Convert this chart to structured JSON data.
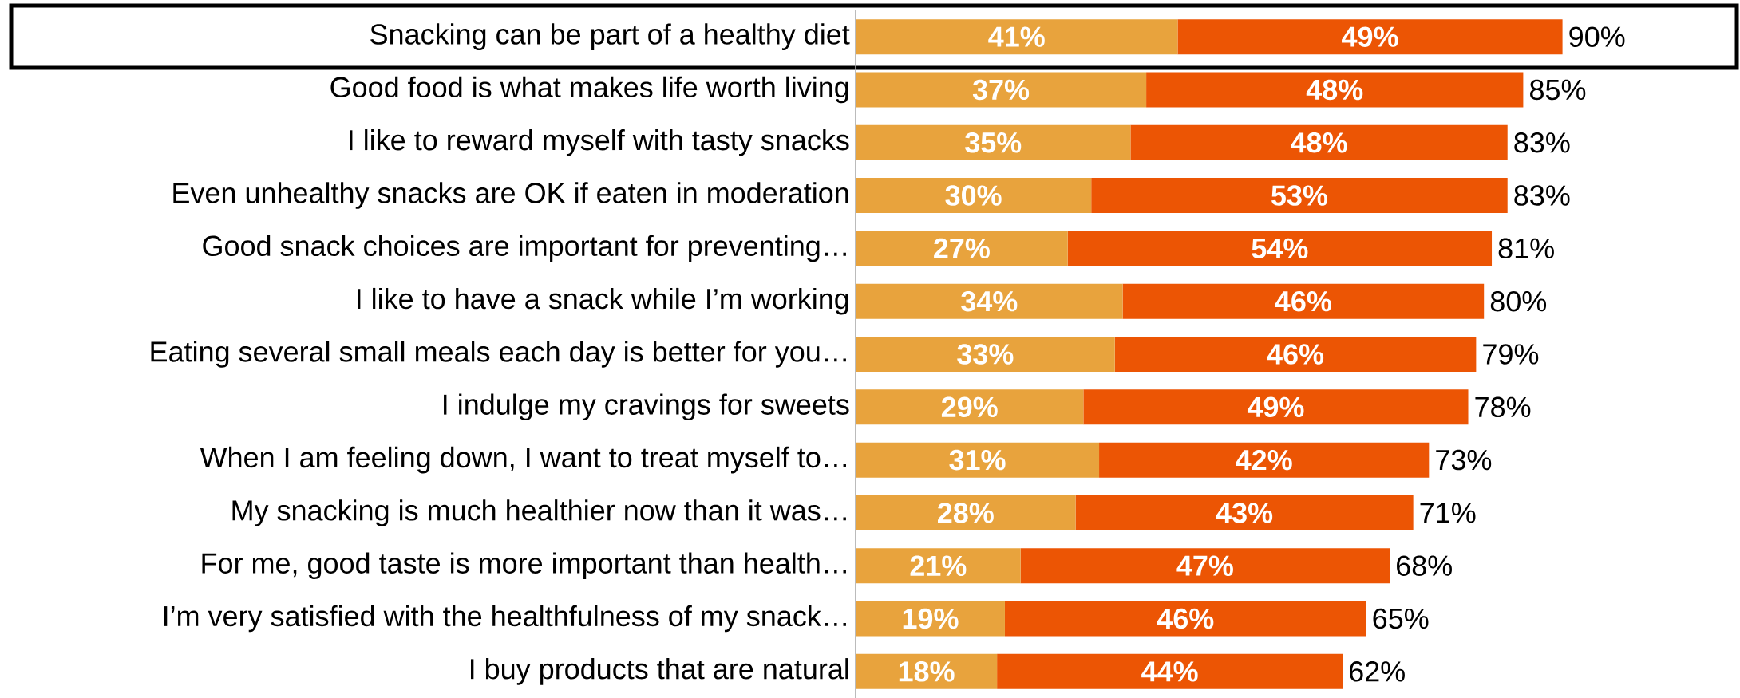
{
  "chart_data": {
    "type": "bar",
    "orientation": "horizontal",
    "stacked": true,
    "categories": [
      "Snacking can be part of a healthy diet",
      "Good food is what makes life worth living",
      "I like to reward myself with tasty snacks",
      "Even unhealthy snacks are OK if eaten in moderation",
      "Good snack choices are important for preventing…",
      "I like to have a snack while I’m working",
      "Eating several small meals each day is better for you…",
      "I indulge my cravings for sweets",
      "When I am feeling down, I want to treat myself to…",
      "My snacking is much healthier now than it was…",
      "For me, good taste is more important than health…",
      "I’m very satisfied with the healthfulness of my snack…",
      "I buy products that are natural"
    ],
    "series": [
      {
        "color": "#e8a33d",
        "values": [
          41,
          37,
          35,
          30,
          27,
          34,
          33,
          29,
          31,
          28,
          21,
          19,
          18
        ],
        "value_labels": [
          "41%",
          "37%",
          "35%",
          "30%",
          "27%",
          "34%",
          "33%",
          "29%",
          "31%",
          "28%",
          "21%",
          "19%",
          "18%"
        ]
      },
      {
        "color": "#ec5504",
        "values": [
          49,
          48,
          48,
          53,
          54,
          46,
          46,
          49,
          42,
          43,
          47,
          46,
          44
        ],
        "value_labels": [
          "49%",
          "48%",
          "48%",
          "53%",
          "54%",
          "46%",
          "46%",
          "49%",
          "42%",
          "43%",
          "47%",
          "46%",
          "44%"
        ]
      }
    ],
    "totals": [
      "90%",
      "85%",
      "83%",
      "83%",
      "81%",
      "80%",
      "79%",
      "78%",
      "73%",
      "71%",
      "68%",
      "65%",
      "62%"
    ],
    "data_labels": false
  }
}
